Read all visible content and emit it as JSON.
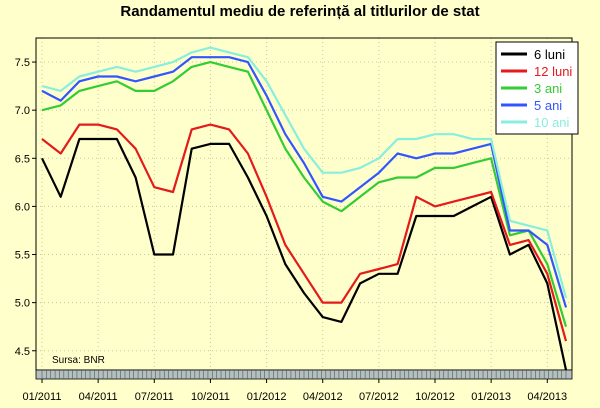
{
  "chart_data": {
    "type": "line",
    "title": "Randamentul mediu de referință al titlurilor de stat",
    "source_note": "Sursa: BNR",
    "ylim": [
      4.3,
      7.75
    ],
    "yticks": [
      "4.5",
      "5.0",
      "5.5",
      "6.0",
      "6.5",
      "7.0",
      "7.5"
    ],
    "xticks": [
      "01/2011",
      "04/2011",
      "07/2011",
      "10/2011",
      "01/2012",
      "04/2012",
      "07/2012",
      "10/2012",
      "01/2013",
      "04/2013"
    ],
    "x": [
      "01/2011",
      "02/2011",
      "03/2011",
      "04/2011",
      "05/2011",
      "06/2011",
      "07/2011",
      "08/2011",
      "09/2011",
      "10/2011",
      "11/2011",
      "12/2011",
      "01/2012",
      "02/2012",
      "03/2012",
      "04/2012",
      "05/2012",
      "06/2012",
      "07/2012",
      "08/2012",
      "09/2012",
      "10/2012",
      "11/2012",
      "12/2012",
      "01/2013",
      "02/2013",
      "03/2013",
      "04/2013",
      "05/2013"
    ],
    "grid": true,
    "legend_position": "top-right",
    "series": [
      {
        "name": "6 luni",
        "color": "#000000",
        "values": [
          6.5,
          6.1,
          6.7,
          6.7,
          6.7,
          6.3,
          5.5,
          5.5,
          6.6,
          6.65,
          6.65,
          6.3,
          5.9,
          5.4,
          5.1,
          4.85,
          4.8,
          5.2,
          5.3,
          5.3,
          5.9,
          5.9,
          5.9,
          6.0,
          6.1,
          5.5,
          5.6,
          5.2,
          4.3
        ]
      },
      {
        "name": "12 luni",
        "color": "#E41A1C",
        "values": [
          6.7,
          6.55,
          6.85,
          6.85,
          6.8,
          6.6,
          6.2,
          6.15,
          6.8,
          6.85,
          6.8,
          6.55,
          6.1,
          5.6,
          5.3,
          5.0,
          5.0,
          5.3,
          5.35,
          5.4,
          6.1,
          6.0,
          6.05,
          6.1,
          6.15,
          5.6,
          5.65,
          5.3,
          4.6
        ]
      },
      {
        "name": "3 ani",
        "color": "#33CC33",
        "values": [
          7.0,
          7.05,
          7.2,
          7.25,
          7.3,
          7.2,
          7.2,
          7.3,
          7.45,
          7.5,
          7.45,
          7.4,
          7.0,
          6.6,
          6.3,
          6.05,
          5.95,
          6.1,
          6.25,
          6.3,
          6.3,
          6.4,
          6.4,
          6.45,
          6.5,
          5.7,
          5.75,
          5.4,
          4.75
        ]
      },
      {
        "name": "5 ani",
        "color": "#3355FF",
        "values": [
          7.2,
          7.1,
          7.3,
          7.35,
          7.35,
          7.3,
          7.35,
          7.4,
          7.55,
          7.55,
          7.55,
          7.5,
          7.15,
          6.75,
          6.45,
          6.1,
          6.05,
          6.2,
          6.35,
          6.55,
          6.5,
          6.55,
          6.55,
          6.6,
          6.65,
          5.75,
          5.75,
          5.6,
          4.95
        ]
      },
      {
        "name": "10 ani",
        "color": "#88EEDD",
        "values": [
          7.25,
          7.2,
          7.35,
          7.4,
          7.45,
          7.4,
          7.45,
          7.5,
          7.6,
          7.65,
          7.6,
          7.55,
          7.3,
          6.95,
          6.6,
          6.35,
          6.35,
          6.4,
          6.5,
          6.7,
          6.7,
          6.75,
          6.75,
          6.7,
          6.7,
          5.85,
          5.8,
          5.75,
          5.05
        ]
      }
    ]
  }
}
